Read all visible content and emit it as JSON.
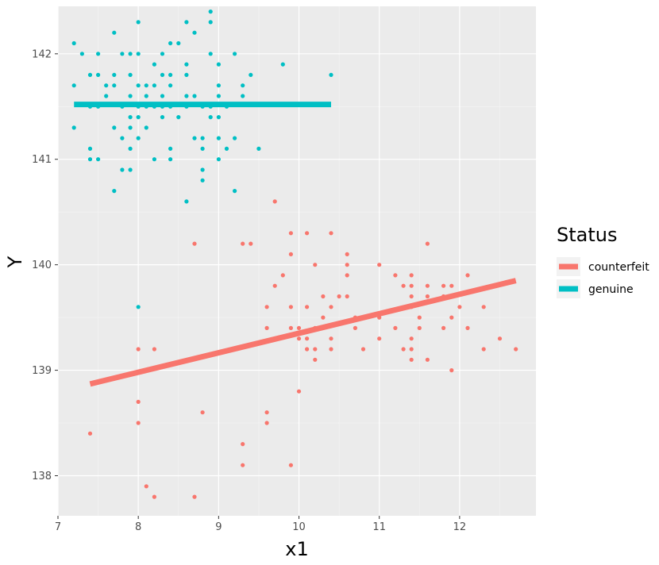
{
  "chart_data": {
    "type": "scatter",
    "xlabel": "x1",
    "ylabel": "Y",
    "xlim": [
      7.0,
      12.95
    ],
    "ylim": [
      137.62,
      142.45
    ],
    "x_ticks": [
      7,
      8,
      9,
      10,
      11,
      12
    ],
    "y_ticks": [
      138,
      139,
      140,
      141,
      142
    ],
    "grid": true,
    "legend": {
      "title": "Status",
      "position": "right"
    },
    "series": [
      {
        "name": "counterfeit",
        "color": "#F8766D",
        "points": [
          [
            7.4,
            138.4
          ],
          [
            8.0,
            139.2
          ],
          [
            8.0,
            138.7
          ],
          [
            8.0,
            138.5
          ],
          [
            8.1,
            137.9
          ],
          [
            8.2,
            137.8
          ],
          [
            8.2,
            139.2
          ],
          [
            8.7,
            140.2
          ],
          [
            8.7,
            137.8
          ],
          [
            8.8,
            138.6
          ],
          [
            9.3,
            140.2
          ],
          [
            9.3,
            138.3
          ],
          [
            9.3,
            138.1
          ],
          [
            9.4,
            140.2
          ],
          [
            9.6,
            139.6
          ],
          [
            9.6,
            139.4
          ],
          [
            9.6,
            138.6
          ],
          [
            9.6,
            138.5
          ],
          [
            9.7,
            140.6
          ],
          [
            9.7,
            139.8
          ],
          [
            9.8,
            139.9
          ],
          [
            9.9,
            140.3
          ],
          [
            9.9,
            140.1
          ],
          [
            9.9,
            139.6
          ],
          [
            9.9,
            139.4
          ],
          [
            9.9,
            138.1
          ],
          [
            10.0,
            139.4
          ],
          [
            10.0,
            139.3
          ],
          [
            10.0,
            138.8
          ],
          [
            10.1,
            140.3
          ],
          [
            10.1,
            139.6
          ],
          [
            10.1,
            139.3
          ],
          [
            10.1,
            139.2
          ],
          [
            10.2,
            140.0
          ],
          [
            10.2,
            139.4
          ],
          [
            10.2,
            139.2
          ],
          [
            10.2,
            139.1
          ],
          [
            10.3,
            139.7
          ],
          [
            10.3,
            139.5
          ],
          [
            10.4,
            140.3
          ],
          [
            10.4,
            139.6
          ],
          [
            10.4,
            139.3
          ],
          [
            10.4,
            139.2
          ],
          [
            10.5,
            139.7
          ],
          [
            10.6,
            140.1
          ],
          [
            10.6,
            140.0
          ],
          [
            10.6,
            139.9
          ],
          [
            10.6,
            139.7
          ],
          [
            10.7,
            139.5
          ],
          [
            10.7,
            139.4
          ],
          [
            10.8,
            139.2
          ],
          [
            11.0,
            140.0
          ],
          [
            11.0,
            139.5
          ],
          [
            11.0,
            139.3
          ],
          [
            11.2,
            139.9
          ],
          [
            11.2,
            139.4
          ],
          [
            11.3,
            139.8
          ],
          [
            11.3,
            139.2
          ],
          [
            11.4,
            139.9
          ],
          [
            11.4,
            139.8
          ],
          [
            11.4,
            139.7
          ],
          [
            11.4,
            139.6
          ],
          [
            11.4,
            139.3
          ],
          [
            11.4,
            139.2
          ],
          [
            11.4,
            139.1
          ],
          [
            11.5,
            139.5
          ],
          [
            11.5,
            139.4
          ],
          [
            11.6,
            140.2
          ],
          [
            11.6,
            139.8
          ],
          [
            11.6,
            139.7
          ],
          [
            11.6,
            139.1
          ],
          [
            11.8,
            139.8
          ],
          [
            11.8,
            139.7
          ],
          [
            11.8,
            139.4
          ],
          [
            11.9,
            139.8
          ],
          [
            11.9,
            139.5
          ],
          [
            11.9,
            139.0
          ],
          [
            12.0,
            139.6
          ],
          [
            12.1,
            139.9
          ],
          [
            12.1,
            139.4
          ],
          [
            12.3,
            139.6
          ],
          [
            12.3,
            139.2
          ],
          [
            12.5,
            139.3
          ],
          [
            12.7,
            139.2
          ]
        ],
        "fit_line": {
          "x": [
            7.4,
            12.7
          ],
          "y": [
            138.87,
            139.85
          ]
        }
      },
      {
        "name": "genuine",
        "color": "#00BFC4",
        "points": [
          [
            7.2,
            142.1
          ],
          [
            7.2,
            141.7
          ],
          [
            7.2,
            141.3
          ],
          [
            7.3,
            142.0
          ],
          [
            7.4,
            141.8
          ],
          [
            7.4,
            141.5
          ],
          [
            7.4,
            141.1
          ],
          [
            7.4,
            141.0
          ],
          [
            7.5,
            142.0
          ],
          [
            7.5,
            141.8
          ],
          [
            7.5,
            141.5
          ],
          [
            7.5,
            141.0
          ],
          [
            7.6,
            141.7
          ],
          [
            7.6,
            141.6
          ],
          [
            7.7,
            142.2
          ],
          [
            7.7,
            141.8
          ],
          [
            7.7,
            141.7
          ],
          [
            7.7,
            141.3
          ],
          [
            7.7,
            140.7
          ],
          [
            7.8,
            142.0
          ],
          [
            7.8,
            141.5
          ],
          [
            7.8,
            141.2
          ],
          [
            7.8,
            140.9
          ],
          [
            7.9,
            142.0
          ],
          [
            7.9,
            141.8
          ],
          [
            7.9,
            141.6
          ],
          [
            7.9,
            141.4
          ],
          [
            7.9,
            141.3
          ],
          [
            7.9,
            141.1
          ],
          [
            7.9,
            140.9
          ],
          [
            8.0,
            142.3
          ],
          [
            8.0,
            142.0
          ],
          [
            8.0,
            141.7
          ],
          [
            8.0,
            141.5
          ],
          [
            8.0,
            141.4
          ],
          [
            8.0,
            141.2
          ],
          [
            8.0,
            139.6
          ],
          [
            8.1,
            141.7
          ],
          [
            8.1,
            141.6
          ],
          [
            8.1,
            141.5
          ],
          [
            8.1,
            141.3
          ],
          [
            8.2,
            141.9
          ],
          [
            8.2,
            141.7
          ],
          [
            8.2,
            141.5
          ],
          [
            8.2,
            141.0
          ],
          [
            8.3,
            142.0
          ],
          [
            8.3,
            141.8
          ],
          [
            8.3,
            141.6
          ],
          [
            8.3,
            141.5
          ],
          [
            8.3,
            141.4
          ],
          [
            8.4,
            142.1
          ],
          [
            8.4,
            141.8
          ],
          [
            8.4,
            141.7
          ],
          [
            8.4,
            141.5
          ],
          [
            8.4,
            141.1
          ],
          [
            8.4,
            141.0
          ],
          [
            8.5,
            142.1
          ],
          [
            8.5,
            141.4
          ],
          [
            8.6,
            142.3
          ],
          [
            8.6,
            141.9
          ],
          [
            8.6,
            141.8
          ],
          [
            8.6,
            141.6
          ],
          [
            8.6,
            141.5
          ],
          [
            8.6,
            140.6
          ],
          [
            8.7,
            142.2
          ],
          [
            8.7,
            141.6
          ],
          [
            8.7,
            141.2
          ],
          [
            8.8,
            141.5
          ],
          [
            8.8,
            141.2
          ],
          [
            8.8,
            141.1
          ],
          [
            8.8,
            140.9
          ],
          [
            8.8,
            140.8
          ],
          [
            8.9,
            142.4
          ],
          [
            8.9,
            142.3
          ],
          [
            8.9,
            142.0
          ],
          [
            8.9,
            141.5
          ],
          [
            8.9,
            141.4
          ],
          [
            9.0,
            141.9
          ],
          [
            9.0,
            141.7
          ],
          [
            9.0,
            141.6
          ],
          [
            9.0,
            141.4
          ],
          [
            9.0,
            141.2
          ],
          [
            9.0,
            141.0
          ],
          [
            9.1,
            141.5
          ],
          [
            9.1,
            141.1
          ],
          [
            9.2,
            142.0
          ],
          [
            9.2,
            141.2
          ],
          [
            9.2,
            140.7
          ],
          [
            9.3,
            141.7
          ],
          [
            9.3,
            141.6
          ],
          [
            9.4,
            141.8
          ],
          [
            9.5,
            141.1
          ],
          [
            9.8,
            141.9
          ],
          [
            10.4,
            141.8
          ]
        ],
        "fit_line": {
          "x": [
            7.2,
            10.4
          ],
          "y": [
            141.52,
            141.52
          ]
        }
      }
    ]
  }
}
